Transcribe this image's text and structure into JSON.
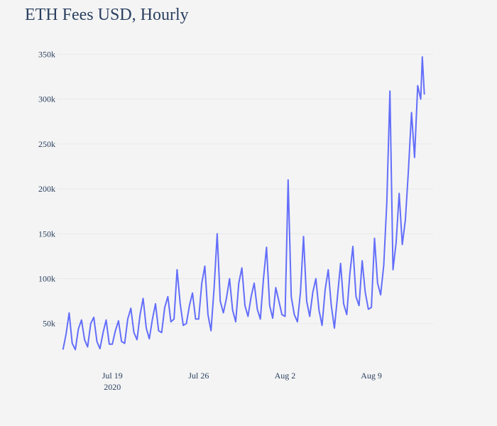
{
  "chart_data": {
    "type": "line",
    "title": "ETH Fees USD, Hourly",
    "xlabel": "",
    "ylabel": "",
    "x_range": [
      "2020-07-14T12:00",
      "2020-08-14T00:00"
    ],
    "ylim": [
      15000,
      355000
    ],
    "yticks": [
      50000,
      100000,
      150000,
      200000,
      250000,
      300000,
      350000
    ],
    "ytick_labels": [
      "50k",
      "100k",
      "150k",
      "200k",
      "250k",
      "300k",
      "350k"
    ],
    "xticks": [
      {
        "date": "2020-07-19",
        "label": "Jul 19",
        "sublabel": "2020"
      },
      {
        "date": "2020-07-26",
        "label": "Jul 26",
        "sublabel": ""
      },
      {
        "date": "2020-08-02",
        "label": "Aug 2",
        "sublabel": ""
      },
      {
        "date": "2020-08-09",
        "label": "Aug 9",
        "sublabel": ""
      }
    ],
    "grid": true,
    "line_color": "#636efa",
    "series": [
      {
        "name": "",
        "points": [
          [
            "2020-07-15T00:00",
            21000
          ],
          [
            "2020-07-15T06:00",
            38000
          ],
          [
            "2020-07-15T12:00",
            62000
          ],
          [
            "2020-07-15T18:00",
            28000
          ],
          [
            "2020-07-16T00:00",
            21000
          ],
          [
            "2020-07-16T06:00",
            44000
          ],
          [
            "2020-07-16T12:00",
            54000
          ],
          [
            "2020-07-16T18:00",
            32000
          ],
          [
            "2020-07-17T00:00",
            24000
          ],
          [
            "2020-07-17T06:00",
            50000
          ],
          [
            "2020-07-17T12:00",
            57000
          ],
          [
            "2020-07-17T18:00",
            30000
          ],
          [
            "2020-07-18T00:00",
            22000
          ],
          [
            "2020-07-18T06:00",
            40000
          ],
          [
            "2020-07-18T12:00",
            54000
          ],
          [
            "2020-07-18T18:00",
            27000
          ],
          [
            "2020-07-19T00:00",
            27000
          ],
          [
            "2020-07-19T06:00",
            42000
          ],
          [
            "2020-07-19T12:00",
            53000
          ],
          [
            "2020-07-19T18:00",
            30000
          ],
          [
            "2020-07-20T00:00",
            28000
          ],
          [
            "2020-07-20T06:00",
            55000
          ],
          [
            "2020-07-20T12:00",
            67000
          ],
          [
            "2020-07-20T18:00",
            40000
          ],
          [
            "2020-07-21T00:00",
            32000
          ],
          [
            "2020-07-21T06:00",
            60000
          ],
          [
            "2020-07-21T12:00",
            78000
          ],
          [
            "2020-07-21T18:00",
            45000
          ],
          [
            "2020-07-22T00:00",
            33000
          ],
          [
            "2020-07-22T06:00",
            55000
          ],
          [
            "2020-07-22T12:00",
            72000
          ],
          [
            "2020-07-22T18:00",
            42000
          ],
          [
            "2020-07-23T00:00",
            40000
          ],
          [
            "2020-07-23T06:00",
            68000
          ],
          [
            "2020-07-23T12:00",
            80000
          ],
          [
            "2020-07-23T18:00",
            52000
          ],
          [
            "2020-07-24T00:00",
            55000
          ],
          [
            "2020-07-24T06:00",
            110000
          ],
          [
            "2020-07-24T12:00",
            72000
          ],
          [
            "2020-07-24T18:00",
            48000
          ],
          [
            "2020-07-25T00:00",
            50000
          ],
          [
            "2020-07-25T06:00",
            70000
          ],
          [
            "2020-07-25T12:00",
            84000
          ],
          [
            "2020-07-25T18:00",
            55000
          ],
          [
            "2020-07-26T00:00",
            55000
          ],
          [
            "2020-07-26T06:00",
            95000
          ],
          [
            "2020-07-26T12:00",
            114000
          ],
          [
            "2020-07-26T18:00",
            60000
          ],
          [
            "2020-07-27T00:00",
            42000
          ],
          [
            "2020-07-27T06:00",
            90000
          ],
          [
            "2020-07-27T12:00",
            150000
          ],
          [
            "2020-07-27T18:00",
            75000
          ],
          [
            "2020-07-28T00:00",
            62000
          ],
          [
            "2020-07-28T06:00",
            78000
          ],
          [
            "2020-07-28T12:00",
            100000
          ],
          [
            "2020-07-28T18:00",
            65000
          ],
          [
            "2020-07-29T00:00",
            52000
          ],
          [
            "2020-07-29T06:00",
            95000
          ],
          [
            "2020-07-29T12:00",
            112000
          ],
          [
            "2020-07-29T18:00",
            70000
          ],
          [
            "2020-07-30T00:00",
            58000
          ],
          [
            "2020-07-30T06:00",
            80000
          ],
          [
            "2020-07-30T12:00",
            95000
          ],
          [
            "2020-07-30T18:00",
            66000
          ],
          [
            "2020-07-31T00:00",
            55000
          ],
          [
            "2020-07-31T06:00",
            100000
          ],
          [
            "2020-07-31T12:00",
            135000
          ],
          [
            "2020-07-31T18:00",
            70000
          ],
          [
            "2020-08-01T00:00",
            56000
          ],
          [
            "2020-08-01T06:00",
            90000
          ],
          [
            "2020-08-01T12:00",
            75000
          ],
          [
            "2020-08-01T18:00",
            60000
          ],
          [
            "2020-08-02T00:00",
            58000
          ],
          [
            "2020-08-02T06:00",
            210000
          ],
          [
            "2020-08-02T12:00",
            80000
          ],
          [
            "2020-08-02T18:00",
            60000
          ],
          [
            "2020-08-03T00:00",
            52000
          ],
          [
            "2020-08-03T06:00",
            85000
          ],
          [
            "2020-08-03T12:00",
            147000
          ],
          [
            "2020-08-03T18:00",
            75000
          ],
          [
            "2020-08-04T00:00",
            58000
          ],
          [
            "2020-08-04T06:00",
            85000
          ],
          [
            "2020-08-04T12:00",
            100000
          ],
          [
            "2020-08-04T18:00",
            65000
          ],
          [
            "2020-08-05T00:00",
            48000
          ],
          [
            "2020-08-05T06:00",
            88000
          ],
          [
            "2020-08-05T12:00",
            110000
          ],
          [
            "2020-08-05T18:00",
            70000
          ],
          [
            "2020-08-06T00:00",
            45000
          ],
          [
            "2020-08-06T06:00",
            80000
          ],
          [
            "2020-08-06T12:00",
            117000
          ],
          [
            "2020-08-06T18:00",
            72000
          ],
          [
            "2020-08-07T00:00",
            60000
          ],
          [
            "2020-08-07T06:00",
            105000
          ],
          [
            "2020-08-07T12:00",
            136000
          ],
          [
            "2020-08-07T18:00",
            80000
          ],
          [
            "2020-08-08T00:00",
            70000
          ],
          [
            "2020-08-08T06:00",
            120000
          ],
          [
            "2020-08-08T12:00",
            85000
          ],
          [
            "2020-08-08T18:00",
            66000
          ],
          [
            "2020-08-09T00:00",
            68000
          ],
          [
            "2020-08-09T06:00",
            145000
          ],
          [
            "2020-08-09T12:00",
            95000
          ],
          [
            "2020-08-09T18:00",
            82000
          ],
          [
            "2020-08-10T00:00",
            115000
          ],
          [
            "2020-08-10T06:00",
            185000
          ],
          [
            "2020-08-10T12:00",
            309000
          ],
          [
            "2020-08-10T18:00",
            110000
          ],
          [
            "2020-08-11T00:00",
            140000
          ],
          [
            "2020-08-11T06:00",
            195000
          ],
          [
            "2020-08-11T12:00",
            138000
          ],
          [
            "2020-08-11T18:00",
            165000
          ],
          [
            "2020-08-12T00:00",
            220000
          ],
          [
            "2020-08-12T06:00",
            285000
          ],
          [
            "2020-08-12T12:00",
            235000
          ],
          [
            "2020-08-12T18:00",
            315000
          ],
          [
            "2020-08-13T00:00",
            300000
          ],
          [
            "2020-08-13T03:00",
            347000
          ],
          [
            "2020-08-13T07:00",
            305000
          ]
        ]
      }
    ]
  }
}
